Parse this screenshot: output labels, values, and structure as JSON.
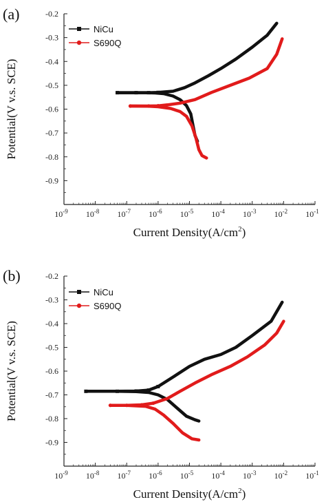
{
  "chart_data": [
    {
      "panel_label": "(a)",
      "type": "line",
      "xlabel_main": "Current Density(A/cm",
      "xlabel_sup": "2",
      "xlabel_tail": ")",
      "ylabel": "Potential(V v.s. SCE)",
      "x_scale": "log",
      "xlim": [
        1e-09,
        0.1
      ],
      "ylim": [
        -1.0,
        -0.2
      ],
      "x_ticks": [
        {
          "value": 1e-09,
          "base": "10",
          "exp": "-9"
        },
        {
          "value": 1e-08,
          "base": "10",
          "exp": "-8"
        },
        {
          "value": 1e-07,
          "base": "10",
          "exp": "-7"
        },
        {
          "value": 1e-06,
          "base": "10",
          "exp": "-6"
        },
        {
          "value": 1e-05,
          "base": "10",
          "exp": "-5"
        },
        {
          "value": 0.0001,
          "base": "10",
          "exp": "-4"
        },
        {
          "value": 0.001,
          "base": "10",
          "exp": "-3"
        },
        {
          "value": 0.01,
          "base": "10",
          "exp": "-2"
        },
        {
          "value": 0.1,
          "base": "10",
          "exp": "-1"
        }
      ],
      "y_ticks": [
        {
          "value": -0.2,
          "label": "-0.2"
        },
        {
          "value": -0.3,
          "label": "-0.3"
        },
        {
          "value": -0.4,
          "label": "-0.4"
        },
        {
          "value": -0.5,
          "label": "-0.5"
        },
        {
          "value": -0.6,
          "label": "-0.6"
        },
        {
          "value": -0.7,
          "label": "-0.7"
        },
        {
          "value": -0.8,
          "label": "-0.8"
        },
        {
          "value": -0.9,
          "label": "-0.9"
        }
      ],
      "legend_placement": "top-left",
      "grid": false,
      "series": [
        {
          "name": "NiCu",
          "color": "#111111",
          "marker": "square",
          "cathodic": [
            [
              1.8e-05,
              -0.735
            ],
            [
              1.5e-05,
              -0.71
            ],
            [
              1.3e-05,
              -0.67
            ],
            [
              1.1e-05,
              -0.62
            ],
            [
              8e-06,
              -0.585
            ],
            [
              5e-06,
              -0.56
            ],
            [
              3e-06,
              -0.545
            ],
            [
              1.5e-06,
              -0.535
            ],
            [
              8e-07,
              -0.532
            ],
            [
              4e-07,
              -0.531
            ],
            [
              1e-07,
              -0.531
            ],
            [
              5e-08,
              -0.531
            ]
          ],
          "anodic": [
            [
              5e-08,
              -0.531
            ],
            [
              2e-07,
              -0.531
            ],
            [
              5e-07,
              -0.531
            ],
            [
              1e-06,
              -0.53
            ],
            [
              3e-06,
              -0.525
            ],
            [
              7e-06,
              -0.51
            ],
            [
              1.5e-05,
              -0.49
            ],
            [
              4e-05,
              -0.46
            ],
            [
              0.0001,
              -0.43
            ],
            [
              0.0003,
              -0.39
            ],
            [
              0.001,
              -0.34
            ],
            [
              0.003,
              -0.29
            ],
            [
              0.006,
              -0.24
            ]
          ]
        },
        {
          "name": "S690Q",
          "color": "#e11b1b",
          "marker": "circle",
          "cathodic": [
            [
              3.5e-05,
              -0.805
            ],
            [
              2.5e-05,
              -0.795
            ],
            [
              2e-05,
              -0.77
            ],
            [
              1.6e-05,
              -0.72
            ],
            [
              1.2e-05,
              -0.67
            ],
            [
              8e-06,
              -0.63
            ],
            [
              5e-06,
              -0.61
            ],
            [
              2.5e-06,
              -0.597
            ],
            [
              1e-06,
              -0.59
            ],
            [
              5e-07,
              -0.588
            ],
            [
              1.3e-07,
              -0.587
            ]
          ],
          "anodic": [
            [
              1.3e-07,
              -0.587
            ],
            [
              5e-07,
              -0.587
            ],
            [
              1e-06,
              -0.586
            ],
            [
              2e-06,
              -0.582
            ],
            [
              5e-06,
              -0.575
            ],
            [
              1.5e-05,
              -0.56
            ],
            [
              5e-05,
              -0.53
            ],
            [
              0.0002,
              -0.5
            ],
            [
              0.0008,
              -0.47
            ],
            [
              0.003,
              -0.43
            ],
            [
              0.006,
              -0.37
            ],
            [
              0.009,
              -0.305
            ]
          ]
        }
      ]
    },
    {
      "panel_label": "(b)",
      "type": "line",
      "xlabel_main": "Current Density(A/cm",
      "xlabel_sup": "2",
      "xlabel_tail": ")",
      "ylabel": "Potential(V v.s. SCE)",
      "x_scale": "log",
      "xlim": [
        1e-09,
        0.1
      ],
      "ylim": [
        -1.0,
        -0.2
      ],
      "x_ticks": [
        {
          "value": 1e-09,
          "base": "10",
          "exp": "-9"
        },
        {
          "value": 1e-08,
          "base": "10",
          "exp": "-8"
        },
        {
          "value": 1e-07,
          "base": "10",
          "exp": "-7"
        },
        {
          "value": 1e-06,
          "base": "10",
          "exp": "-6"
        },
        {
          "value": 1e-05,
          "base": "10",
          "exp": "-5"
        },
        {
          "value": 0.0001,
          "base": "10",
          "exp": "-4"
        },
        {
          "value": 0.001,
          "base": "10",
          "exp": "-3"
        },
        {
          "value": 0.01,
          "base": "10",
          "exp": "-2"
        },
        {
          "value": 0.1,
          "base": "10",
          "exp": "-1"
        }
      ],
      "y_ticks": [
        {
          "value": -0.2,
          "label": "-0.2"
        },
        {
          "value": -0.3,
          "label": "-0.3"
        },
        {
          "value": -0.4,
          "label": "-0.4"
        },
        {
          "value": -0.5,
          "label": "-0.5"
        },
        {
          "value": -0.6,
          "label": "-0.6"
        },
        {
          "value": -0.7,
          "label": "-0.7"
        },
        {
          "value": -0.8,
          "label": "-0.8"
        },
        {
          "value": -0.9,
          "label": "-0.9"
        }
      ],
      "legend_placement": "top-left",
      "grid": false,
      "series": [
        {
          "name": "NiCu",
          "color": "#111111",
          "marker": "square",
          "cathodic": [
            [
              2e-05,
              -0.81
            ],
            [
              1.5e-05,
              -0.805
            ],
            [
              8e-06,
              -0.79
            ],
            [
              4e-06,
              -0.755
            ],
            [
              2e-06,
              -0.72
            ],
            [
              1e-06,
              -0.7
            ],
            [
              5e-07,
              -0.69
            ],
            [
              2e-07,
              -0.686
            ],
            [
              5e-08,
              -0.685
            ],
            [
              5e-09,
              -0.685
            ]
          ],
          "anodic": [
            [
              5e-09,
              -0.685
            ],
            [
              5e-08,
              -0.685
            ],
            [
              2e-07,
              -0.684
            ],
            [
              5e-07,
              -0.68
            ],
            [
              1e-06,
              -0.665
            ],
            [
              3e-06,
              -0.625
            ],
            [
              1e-05,
              -0.58
            ],
            [
              3e-05,
              -0.55
            ],
            [
              0.0001,
              -0.53
            ],
            [
              0.0003,
              -0.5
            ],
            [
              0.001,
              -0.45
            ],
            [
              0.004,
              -0.39
            ],
            [
              0.009,
              -0.31
            ]
          ]
        },
        {
          "name": "S690Q",
          "color": "#e11b1b",
          "marker": "circle",
          "cathodic": [
            [
              2e-05,
              -0.89
            ],
            [
              1.2e-05,
              -0.885
            ],
            [
              6e-06,
              -0.86
            ],
            [
              3e-06,
              -0.82
            ],
            [
              1.5e-06,
              -0.785
            ],
            [
              8e-07,
              -0.76
            ],
            [
              4e-07,
              -0.748
            ],
            [
              1e-07,
              -0.744
            ],
            [
              3e-08,
              -0.744
            ]
          ],
          "anodic": [
            [
              3e-08,
              -0.744
            ],
            [
              1e-07,
              -0.744
            ],
            [
              3e-07,
              -0.742
            ],
            [
              7e-07,
              -0.735
            ],
            [
              2e-06,
              -0.715
            ],
            [
              5e-06,
              -0.685
            ],
            [
              1.5e-05,
              -0.65
            ],
            [
              5e-05,
              -0.615
            ],
            [
              0.0002,
              -0.58
            ],
            [
              0.0007,
              -0.54
            ],
            [
              0.0025,
              -0.49
            ],
            [
              0.006,
              -0.44
            ],
            [
              0.01,
              -0.39
            ]
          ]
        }
      ]
    }
  ]
}
